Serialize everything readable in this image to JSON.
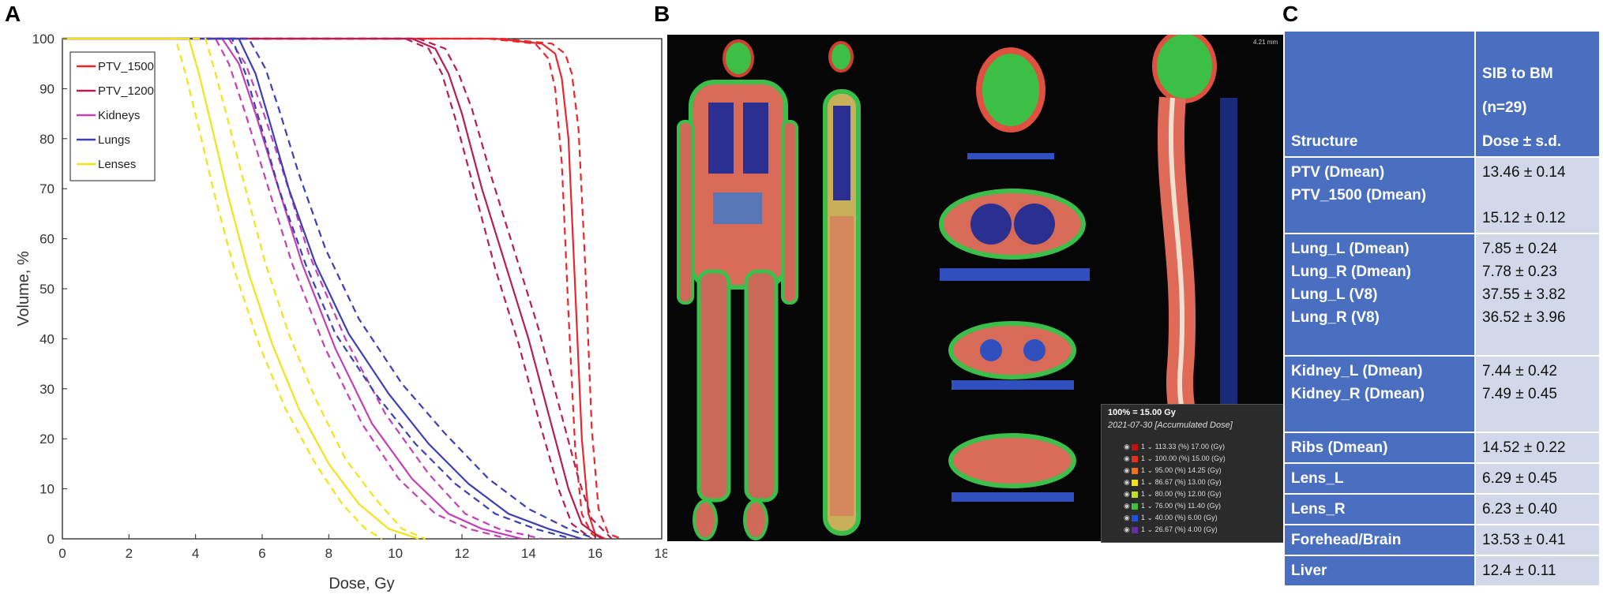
{
  "panel_letters": {
    "a": "A",
    "b": "B",
    "c": "C"
  },
  "chart_data": {
    "type": "line",
    "xlabel": "Dose, Gy",
    "ylabel": "Volume, %",
    "xlim": [
      0,
      18
    ],
    "ylim": [
      0,
      100
    ],
    "xticks": [
      "0",
      "2",
      "4",
      "6",
      "8",
      "10",
      "12",
      "14",
      "16",
      "18"
    ],
    "yticks": [
      "0",
      "10",
      "20",
      "30",
      "40",
      "50",
      "60",
      "70",
      "80",
      "90",
      "100"
    ],
    "grid": false,
    "legend_placement": "top-left",
    "legend": [
      {
        "name": "PTV_1500",
        "color": "#e8262e"
      },
      {
        "name": "PTV_1200",
        "color": "#b51e4e"
      },
      {
        "name": "Kidneys",
        "color": "#c33fb6"
      },
      {
        "name": "Lungs",
        "color": "#3b3fb3"
      },
      {
        "name": "Lenses",
        "color": "#f2e21a"
      }
    ],
    "series": [
      {
        "name": "PTV_1500",
        "color": "#e8262e",
        "dash": false,
        "x": [
          0,
          13.0,
          14.4,
          14.8,
          15.0,
          15.2,
          15.4,
          15.6,
          15.8,
          16.0,
          16.3
        ],
        "y": [
          100,
          100,
          99,
          97,
          92,
          80,
          50,
          20,
          5,
          1,
          0
        ]
      },
      {
        "name": "PTV_1500",
        "color": "#e8262e",
        "dash": true,
        "x": [
          0,
          12.8,
          14.2,
          14.6,
          14.8,
          15.0,
          15.2,
          15.4,
          15.6,
          15.9,
          16.1
        ],
        "y": [
          100,
          100,
          99,
          96,
          90,
          75,
          45,
          18,
          5,
          1,
          0
        ]
      },
      {
        "name": "PTV_1500",
        "color": "#e8262e",
        "dash": true,
        "x": [
          0,
          13.2,
          14.7,
          15.1,
          15.3,
          15.5,
          15.7,
          15.9,
          16.1,
          16.4,
          16.8
        ],
        "y": [
          100,
          100,
          99,
          97,
          93,
          82,
          55,
          22,
          6,
          1,
          0
        ]
      },
      {
        "name": "PTV_1200",
        "color": "#b51e4e",
        "dash": false,
        "x": [
          0,
          10.5,
          11.2,
          11.6,
          12.0,
          12.6,
          13.3,
          14.0,
          14.6,
          15.2,
          15.6,
          16.2
        ],
        "y": [
          100,
          100,
          98,
          93,
          85,
          70,
          55,
          40,
          25,
          10,
          3,
          0
        ]
      },
      {
        "name": "PTV_1200",
        "color": "#b51e4e",
        "dash": true,
        "x": [
          0,
          10.3,
          11.0,
          11.4,
          11.8,
          12.4,
          13.0,
          13.7,
          14.3,
          14.9,
          15.3,
          15.9
        ],
        "y": [
          100,
          100,
          98,
          93,
          84,
          69,
          54,
          39,
          24,
          10,
          3,
          0
        ]
      },
      {
        "name": "PTV_1200",
        "color": "#b51e4e",
        "dash": true,
        "x": [
          0,
          10.7,
          11.5,
          11.9,
          12.3,
          12.9,
          13.6,
          14.3,
          14.9,
          15.5,
          15.9,
          16.5
        ],
        "y": [
          100,
          100,
          98,
          93,
          86,
          72,
          57,
          42,
          27,
          12,
          4,
          0
        ]
      },
      {
        "name": "Kidneys",
        "color": "#c33fb6",
        "dash": false,
        "x": [
          0,
          4.8,
          5.3,
          5.8,
          6.4,
          7.2,
          8.2,
          9.3,
          10.5,
          11.6,
          12.6,
          13.8
        ],
        "y": [
          100,
          100,
          95,
          85,
          72,
          55,
          38,
          23,
          12,
          5,
          2,
          0
        ]
      },
      {
        "name": "Kidneys",
        "color": "#c33fb6",
        "dash": true,
        "x": [
          0,
          4.6,
          5.0,
          5.5,
          6.1,
          6.9,
          7.9,
          9.0,
          10.1,
          11.2,
          12.2,
          13.4
        ],
        "y": [
          100,
          100,
          95,
          85,
          72,
          55,
          38,
          23,
          12,
          5,
          2,
          0
        ]
      },
      {
        "name": "Kidneys",
        "color": "#c33fb6",
        "dash": true,
        "x": [
          0,
          5.0,
          5.5,
          6.0,
          6.6,
          7.4,
          8.5,
          9.7,
          11.0,
          12.1,
          13.1,
          14.4
        ],
        "y": [
          100,
          100,
          95,
          86,
          74,
          57,
          40,
          25,
          13,
          5,
          2,
          0
        ]
      },
      {
        "name": "Lungs",
        "color": "#3b3fb3",
        "dash": false,
        "x": [
          0,
          5.3,
          5.8,
          6.2,
          6.8,
          7.6,
          8.6,
          9.8,
          11.0,
          12.2,
          13.4,
          14.6,
          15.6
        ],
        "y": [
          100,
          100,
          93,
          84,
          70,
          55,
          41,
          29,
          19,
          11,
          5,
          2,
          0
        ]
      },
      {
        "name": "Lungs",
        "color": "#3b3fb3",
        "dash": true,
        "x": [
          0,
          5.1,
          5.5,
          5.9,
          6.5,
          7.3,
          8.2,
          9.4,
          10.6,
          11.8,
          13.0,
          14.2,
          15.3
        ],
        "y": [
          100,
          100,
          93,
          84,
          70,
          55,
          41,
          29,
          19,
          11,
          5,
          2,
          0
        ]
      },
      {
        "name": "Lungs",
        "color": "#3b3fb3",
        "dash": true,
        "x": [
          0,
          5.6,
          6.1,
          6.5,
          7.1,
          7.9,
          8.9,
          10.2,
          11.5,
          12.8,
          14.0,
          15.2,
          16.0
        ],
        "y": [
          100,
          100,
          94,
          86,
          73,
          58,
          44,
          31,
          21,
          12,
          6,
          2,
          0
        ]
      },
      {
        "name": "Lenses",
        "color": "#f2e21a",
        "dash": false,
        "x": [
          0,
          3.8,
          4.1,
          4.5,
          5.0,
          5.6,
          6.3,
          7.1,
          8.0,
          8.9,
          9.8,
          10.7
        ],
        "y": [
          100,
          100,
          93,
          82,
          68,
          53,
          39,
          26,
          15,
          7,
          2,
          0
        ]
      },
      {
        "name": "Lenses",
        "color": "#f2e21a",
        "dash": true,
        "x": [
          0,
          3.4,
          3.7,
          4.1,
          4.6,
          5.2,
          5.9,
          6.7,
          7.6,
          8.4,
          9.1,
          9.6
        ],
        "y": [
          100,
          100,
          93,
          82,
          68,
          53,
          39,
          26,
          15,
          7,
          2,
          0
        ]
      },
      {
        "name": "Lenses",
        "color": "#f2e21a",
        "dash": true,
        "x": [
          0,
          4.3,
          4.6,
          5.0,
          5.5,
          6.1,
          6.8,
          7.6,
          8.5,
          9.4,
          10.2,
          10.9
        ],
        "y": [
          100,
          100,
          93,
          83,
          70,
          55,
          41,
          28,
          16,
          8,
          2,
          0
        ]
      }
    ]
  },
  "dose_legend": {
    "title": "100% = 15.00 Gy",
    "subtitle": "2021-07-30 [Accumulated Dose]",
    "rows": [
      {
        "count": "1",
        "percent": "113.33 (%)",
        "gy": "17.00 (Gy)",
        "color": "#c01010"
      },
      {
        "count": "1",
        "percent": "100.00 (%)",
        "gy": "15.00 (Gy)",
        "color": "#e03020"
      },
      {
        "count": "1",
        "percent": "95.00 (%)",
        "gy": "14.25 (Gy)",
        "color": "#f07020"
      },
      {
        "count": "1",
        "percent": "86.67 (%)",
        "gy": "13.00 (Gy)",
        "color": "#f0e020"
      },
      {
        "count": "1",
        "percent": "80.00 (%)",
        "gy": "12.00 (Gy)",
        "color": "#c0e020"
      },
      {
        "count": "1",
        "percent": "76.00 (%)",
        "gy": "11.40 (Gy)",
        "color": "#40c040"
      },
      {
        "count": "1",
        "percent": "40.00 (%)",
        "gy": "6.00 (Gy)",
        "color": "#2050e0"
      },
      {
        "count": "1",
        "percent": "26.67 (%)",
        "gy": "4.00 (Gy)",
        "color": "#6030a0"
      }
    ]
  },
  "table": {
    "header": {
      "structure": "Structure",
      "group": "SIB to BM",
      "n": "(n=29)",
      "dose": "Dose ± s.d."
    },
    "rows": [
      {
        "structures": [
          "PTV (Dmean)",
          "PTV_1500 (Dmean)"
        ],
        "values": [
          "13.46 ± 0.14",
          "",
          "15.12 ± 0.12"
        ]
      },
      {
        "structures": [
          "Lung_L (Dmean)",
          "Lung_R (Dmean)",
          "Lung_L (V8)",
          "Lung_R (V8)",
          ""
        ],
        "values": [
          "7.85 ± 0.24",
          "7.78 ± 0.23",
          "37.55 ± 3.82",
          "36.52 ± 3.96"
        ]
      },
      {
        "structures": [
          "Kidney_L (Dmean)",
          "Kidney_R (Dmean)",
          ""
        ],
        "values": [
          "7.44 ± 0.42",
          "7.49 ± 0.45"
        ]
      },
      {
        "structures": [
          "Ribs (Dmean)"
        ],
        "values": [
          "14.52 ± 0.22"
        ]
      },
      {
        "structures": [
          "Lens_L"
        ],
        "values": [
          "6.29 ± 0.45"
        ]
      },
      {
        "structures": [
          "Lens_R"
        ],
        "values": [
          "6.23 ± 0.40"
        ]
      },
      {
        "structures": [
          "Forehead/Brain"
        ],
        "values": [
          "13.53 ± 0.41"
        ]
      },
      {
        "structures": [
          "Liver"
        ],
        "values": [
          "12.4 ± 0.11"
        ]
      }
    ]
  }
}
